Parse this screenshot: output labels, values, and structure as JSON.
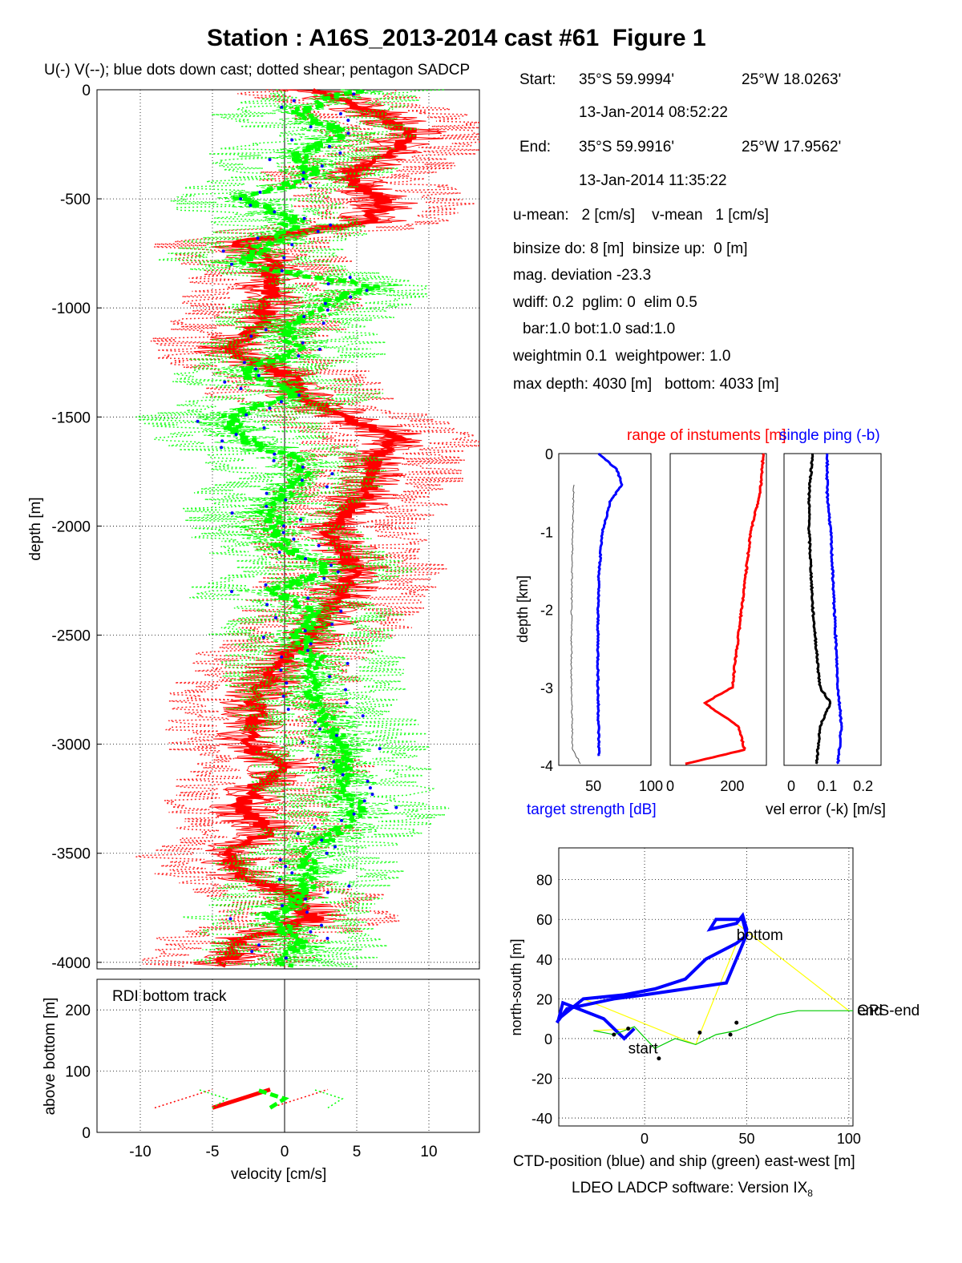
{
  "title": "Station : A16S_2013-2014 cast #61  Figure 1",
  "info": {
    "start_label": "Start:",
    "start_lat": "35°S 59.9994'",
    "start_lon": "25°W 18.0263'",
    "start_time": "13-Jan-2014 08:52:22",
    "end_label": "End:",
    "end_lat": "35°S 59.9916'",
    "end_lon": "25°W 17.9562'",
    "end_time": "13-Jan-2014 11:35:22",
    "umean": "u-mean:   2 [cm/s]    v-mean   1 [cm/s]",
    "binsize": "binsize do: 8 [m]  binsize up:  0 [m]",
    "magdev": "mag. deviation -23.3",
    "wdiff": "wdiff: 0.2  pglim: 0  elim 0.5",
    "bar": "bar:1.0 bot:1.0 sad:1.0",
    "weight": "weightmin 0.1  weightpower: 1.0",
    "maxdepth": "max depth: 4030 [m]   bottom: 4033 [m]"
  },
  "footer": "LDEO LADCP software: Version IX",
  "footer_sub": "8",
  "colors": {
    "u": "#ff0000",
    "v": "#00ff00",
    "dots": "#0000ff",
    "ctd": "#0000ff",
    "ship": "#00cc00",
    "yellow": "#ffff00",
    "black": "#000000",
    "gray": "#555555"
  },
  "chart_data": [
    {
      "type": "line",
      "title": "U(-) V(--); blue dots down cast; dotted shear; pentagon SADCP",
      "xlabel": "",
      "ylabel": "depth [m]",
      "xlim": [
        -13,
        13.5
      ],
      "ylim": [
        -4030,
        0
      ],
      "grid": true,
      "yticks": [
        0,
        -500,
        -1000,
        -1500,
        -2000,
        -2500,
        -3000,
        -3500,
        -4000
      ],
      "series": [
        {
          "role": "U",
          "style": "solid",
          "color": "red",
          "depth": [
            0,
            -100,
            -200,
            -300,
            -400,
            -500,
            -600,
            -700,
            -800,
            -900,
            -1000,
            -1100,
            -1200,
            -1300,
            -1400,
            -1500,
            -1600,
            -1700,
            -1800,
            -1900,
            -2000,
            -2100,
            -2200,
            -2300,
            -2400,
            -2500,
            -2600,
            -2700,
            -2800,
            -2900,
            -3000,
            -3100,
            -3200,
            -3300,
            -3400,
            -3500,
            -3600,
            -3700,
            -3800,
            -3900,
            -4000
          ],
          "values": [
            2,
            6,
            9,
            7,
            4,
            7,
            6,
            -3,
            -1,
            -1,
            -1,
            -2,
            -4,
            0,
            1,
            4,
            8,
            6,
            6,
            5,
            3,
            4,
            5,
            4,
            3,
            2,
            0,
            -1,
            -2,
            -2,
            -3,
            0,
            -2,
            -3,
            -1,
            -4,
            -3,
            1,
            2,
            -3,
            -4
          ]
        },
        {
          "role": "V",
          "style": "dashed",
          "color": "green",
          "depth": [
            0,
            -100,
            -200,
            -300,
            -400,
            -500,
            -600,
            -700,
            -800,
            -900,
            -1000,
            -1100,
            -1200,
            -1300,
            -1400,
            -1500,
            -1600,
            -1700,
            -1800,
            -1900,
            -2000,
            -2100,
            -2200,
            -2300,
            -2400,
            -2500,
            -2600,
            -2700,
            -2800,
            -2900,
            -3000,
            -3100,
            -3200,
            -3300,
            -3400,
            -3500,
            -3600,
            -3700,
            -3800,
            -3900,
            -4000
          ],
          "values": [
            5,
            1,
            4,
            1,
            2,
            -3,
            1,
            -1,
            -3,
            6,
            2,
            0,
            1,
            -3,
            1,
            -4,
            -3,
            1,
            1,
            -1,
            -1,
            0,
            3,
            -1,
            2,
            1,
            2,
            2,
            2,
            3,
            4,
            4,
            4,
            5,
            4,
            1,
            2,
            1,
            -1,
            1,
            0
          ]
        }
      ]
    },
    {
      "type": "line",
      "title": "RDI bottom track",
      "xlabel": "velocity [cm/s]",
      "ylabel": "above bottom [m]",
      "xlim": [
        -13,
        13.5
      ],
      "ylim": [
        0,
        250
      ],
      "xticks": [
        -10,
        -5,
        0,
        5,
        10
      ],
      "yticks": [
        0,
        100,
        200
      ],
      "grid": true,
      "series": [
        {
          "role": "U",
          "style": "solid",
          "color": "red",
          "height": [
            40,
            55,
            70
          ],
          "values": [
            -5,
            -3,
            -1
          ]
        },
        {
          "role": "V",
          "style": "dashed",
          "color": "green",
          "height": [
            40,
            55,
            70
          ],
          "values": [
            -1,
            0,
            -2
          ]
        }
      ]
    },
    {
      "type": "line",
      "xlabel": "target strength [dB]",
      "ylabel": "depth [km]",
      "xlim": [
        20,
        100
      ],
      "ylim": [
        -4,
        0
      ],
      "xticks": [
        50,
        100
      ],
      "yticks": [
        0,
        -1,
        -2,
        -3,
        -4
      ],
      "series": [
        {
          "color": "blue",
          "depth": [
            0,
            -0.2,
            -0.4,
            -0.6,
            -1,
            -1.5,
            -2,
            -3,
            -3.9
          ],
          "values": [
            55,
            70,
            75,
            65,
            58,
            55,
            54,
            54,
            55
          ]
        },
        {
          "color": "gray",
          "depth": [
            -0.4,
            -1,
            -2,
            -3,
            -3.8,
            -4
          ],
          "values": [
            33,
            32,
            31,
            31,
            32,
            40
          ]
        }
      ]
    },
    {
      "type": "line",
      "title": "range of instuments [m]",
      "xlim": [
        0,
        310
      ],
      "ylim": [
        -4,
        0
      ],
      "xticks": [
        0,
        200
      ],
      "series": [
        {
          "color": "red",
          "depth": [
            0,
            -0.5,
            -1,
            -2,
            -3,
            -3.2,
            -3.5,
            -3.8,
            -4
          ],
          "values": [
            300,
            290,
            260,
            230,
            200,
            110,
            220,
            240,
            30
          ]
        }
      ]
    },
    {
      "type": "line",
      "title": "single ping (-b)",
      "xlabel": "vel error (-k) [m/s]",
      "xlim": [
        -0.02,
        0.25
      ],
      "ylim": [
        -4,
        0
      ],
      "xticks": [
        0,
        0.1,
        0.2
      ],
      "series": [
        {
          "color": "black",
          "depth": [
            0,
            -0.5,
            -1,
            -2,
            -3,
            -3.2,
            -3.5,
            -4
          ],
          "values": [
            0.06,
            0.05,
            0.05,
            0.06,
            0.08,
            0.11,
            0.08,
            0.07
          ]
        },
        {
          "color": "blue",
          "depth": [
            0,
            -0.5,
            -1,
            -2,
            -3,
            -3.5,
            -4
          ],
          "values": [
            0.1,
            0.1,
            0.11,
            0.12,
            0.13,
            0.14,
            0.13
          ]
        }
      ]
    },
    {
      "type": "line",
      "xlabel": "CTD-position (blue) and ship (green) east-west [m]",
      "ylabel": "north-south [m]",
      "xlim": [
        -42,
        102
      ],
      "ylim": [
        -44,
        96
      ],
      "xticks": [
        0,
        50,
        100
      ],
      "yticks": [
        80,
        60,
        40,
        20,
        0,
        -20,
        -40
      ],
      "annotations": [
        "bottom",
        "start",
        "GPS-end",
        "end"
      ],
      "series": [
        {
          "role": "CTD",
          "color": "blue",
          "x": [
            -5,
            -10,
            -20,
            -40,
            -42,
            -30,
            -10,
            5,
            20,
            30,
            45,
            50,
            48,
            35,
            32,
            45,
            48,
            50,
            49,
            47,
            40,
            20,
            0,
            -15,
            -38,
            -43
          ],
          "y": [
            5,
            0,
            10,
            18,
            10,
            20,
            22,
            25,
            30,
            40,
            48,
            52,
            60,
            60,
            55,
            58,
            62,
            55,
            50,
            45,
            28,
            25,
            22,
            20,
            15,
            8
          ]
        },
        {
          "role": "ship",
          "color": "green",
          "x": [
            -25,
            -15,
            -5,
            5,
            15,
            25,
            35,
            45,
            55,
            65,
            75,
            85,
            95,
            100,
            102
          ],
          "y": [
            4,
            2,
            6,
            -5,
            0,
            -3,
            2,
            4,
            8,
            12,
            14,
            14,
            14,
            14,
            14
          ]
        }
      ]
    }
  ]
}
